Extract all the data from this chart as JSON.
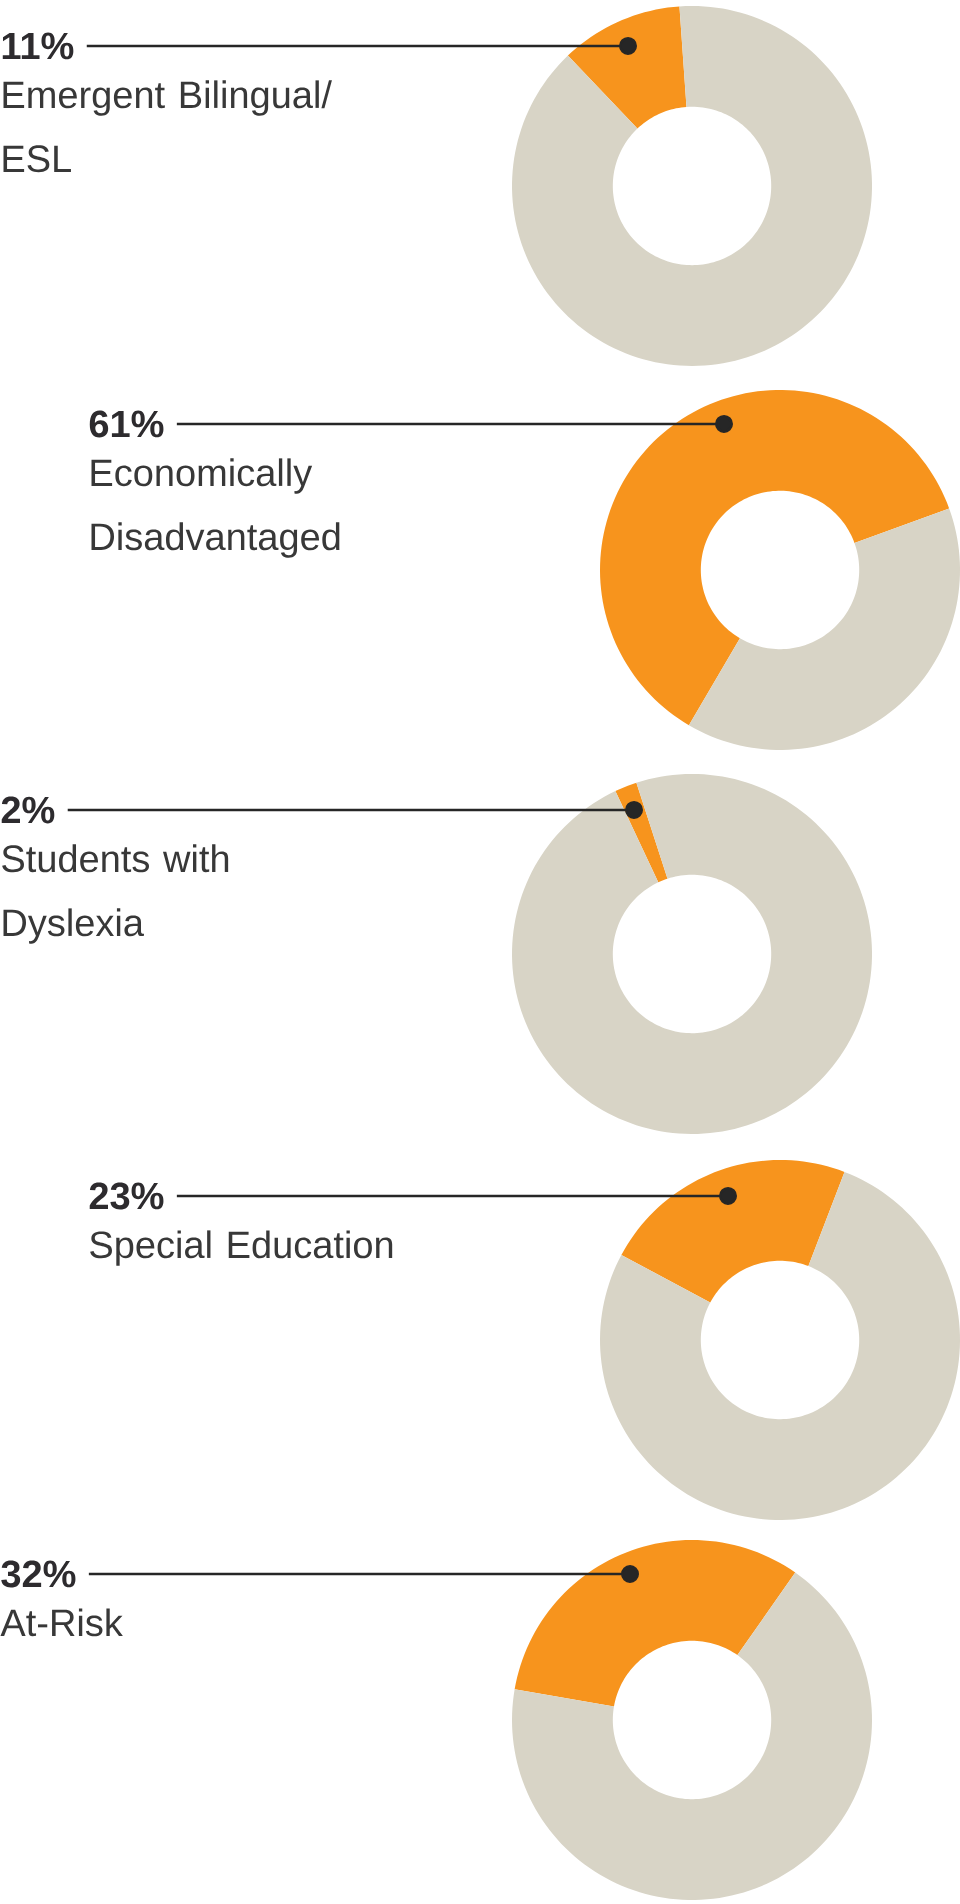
{
  "chart_data": [
    {
      "type": "donut",
      "categories": [
        "Emergent Bilingual/ ESL",
        null
      ],
      "values": [
        11,
        89
      ],
      "value_labels": [
        "11%",
        null
      ],
      "colors": [
        "#f7941d",
        "#d8d4c6"
      ]
    },
    {
      "type": "donut",
      "categories": [
        "Economically Disadvantaged",
        null
      ],
      "values": [
        61,
        39
      ],
      "value_labels": [
        "61%",
        null
      ],
      "colors": [
        "#f7941d",
        "#d8d4c6"
      ]
    },
    {
      "type": "donut",
      "categories": [
        "Students with Dyslexia",
        null
      ],
      "values": [
        2,
        98
      ],
      "value_labels": [
        "2%",
        null
      ],
      "colors": [
        "#f7941d",
        "#d8d4c6"
      ]
    },
    {
      "type": "donut",
      "categories": [
        "Special Education",
        null
      ],
      "values": [
        23,
        77
      ],
      "value_labels": [
        "23%",
        null
      ],
      "colors": [
        "#f7941d",
        "#d8d4c6"
      ]
    },
    {
      "type": "donut",
      "categories": [
        "At-Risk",
        null
      ],
      "values": [
        32,
        68
      ],
      "value_labels": [
        "32%",
        null
      ],
      "colors": [
        "#f7941d",
        "#d8d4c6"
      ]
    }
  ]
}
